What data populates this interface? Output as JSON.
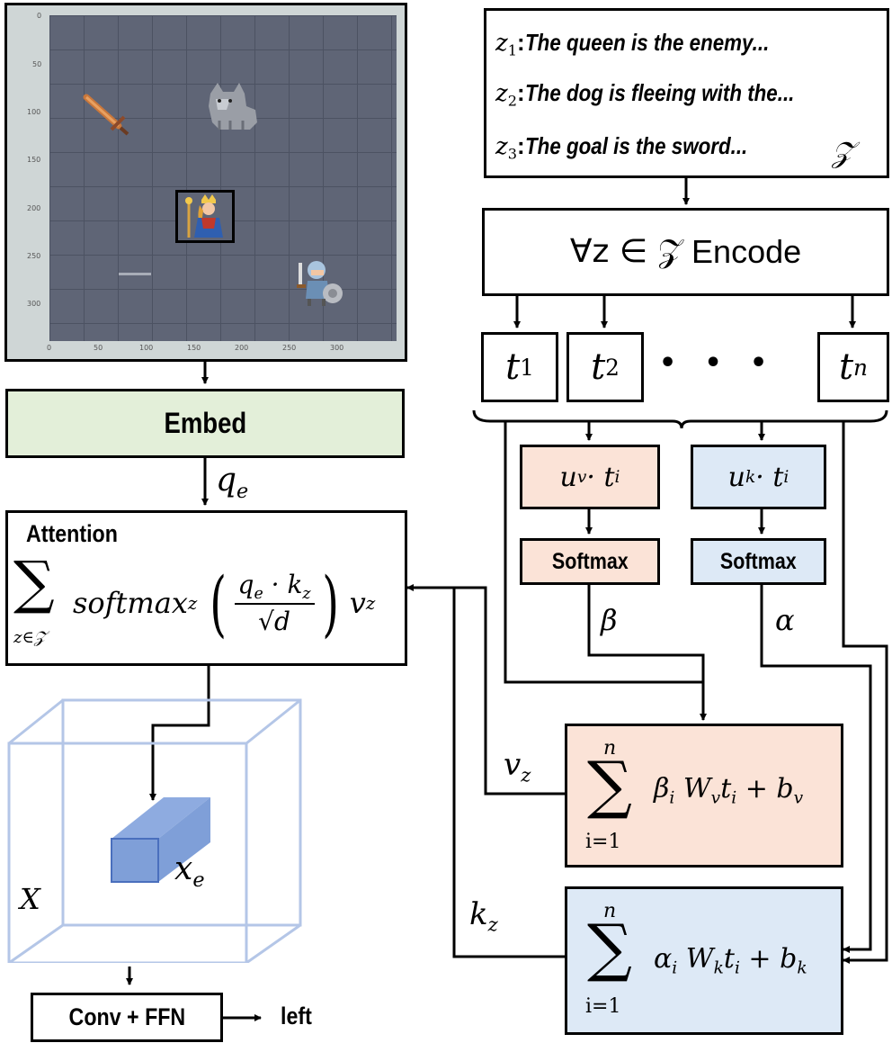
{
  "game_view": {
    "y_ticks": [
      "0",
      "50",
      "100",
      "150",
      "200",
      "250",
      "300"
    ],
    "x_ticks": [
      "0",
      "50",
      "100",
      "150",
      "200",
      "250",
      "300"
    ],
    "sprites": [
      "sword-icon",
      "wolf-icon",
      "queen-icon",
      "knight-icon"
    ]
  },
  "text_box": {
    "lines": [
      {
        "var": "z",
        "sub": "1",
        "sep": ":",
        "text": "The queen is the enemy..."
      },
      {
        "var": "z",
        "sub": "2",
        "sep": ": ",
        "text": "The dog is fleeing with the..."
      },
      {
        "var": "z",
        "sub": "3",
        "sep": ": ",
        "text": "The goal is the sword..."
      }
    ],
    "set_symbol": "𝒵"
  },
  "encode": {
    "prefix": "∀z ∈ 𝒵",
    "label": "Encode"
  },
  "tokens": {
    "t1": {
      "base": "t",
      "sub": "1"
    },
    "t2": {
      "base": "t",
      "sub": "2"
    },
    "tn": {
      "base": "t",
      "sub": "n"
    },
    "ellipsis": "•   •   •"
  },
  "embed": {
    "label": "Embed"
  },
  "qe": {
    "base": "q",
    "sub": "e"
  },
  "attention": {
    "title": "Attention",
    "sum": "∑",
    "sum_under": "z∈𝒵",
    "softmax": "softmax",
    "softmax_sub": "z",
    "numerator": "q",
    "numerator_sub": "e",
    "dot": " · k",
    "dot_sub": "z",
    "denominator": "√d",
    "v": "v",
    "v_sub": "z"
  },
  "uv": {
    "u": "u",
    "u_sub": "v",
    "rest": " · t",
    "rest_sub": "i"
  },
  "uk": {
    "u": "u",
    "u_sub": "k",
    "rest": " · t",
    "rest_sub": "i"
  },
  "softmax_v": {
    "label": "Softmax"
  },
  "softmax_k": {
    "label": "Softmax"
  },
  "beta": "β",
  "alpha": "α",
  "vz_label": {
    "base": "v",
    "sub": "z"
  },
  "kz_label": {
    "base": "k",
    "sub": "z"
  },
  "value_sum": {
    "top": "n",
    "sum": "∑",
    "bottom": "i=1",
    "w": "β",
    "w_sub": "i",
    "mat": " W",
    "mat_sub": "v",
    "t": "t",
    "t_sub": "i",
    "plus": " + b",
    "b_sub": "v"
  },
  "key_sum": {
    "top": "n",
    "sum": "∑",
    "bottom": "i=1",
    "w": "α",
    "w_sub": "i",
    "mat": " W",
    "mat_sub": "k",
    "t": "t",
    "t_sub": "i",
    "plus": " + b",
    "b_sub": "k"
  },
  "cube": {
    "X": "X",
    "xe": "x",
    "xe_sub": "e"
  },
  "conv": {
    "label": "Conv + FFN"
  },
  "output": {
    "label": "left"
  },
  "colors": {
    "embed_bg": "#e3efd9",
    "value_bg": "#fbe3d7",
    "key_bg": "#dde9f6",
    "cube_edge": "#b4c6e7",
    "voxel": "#7f9fd8",
    "grid_bg": "#5f6576",
    "frame_bg": "#cfd6d6"
  }
}
